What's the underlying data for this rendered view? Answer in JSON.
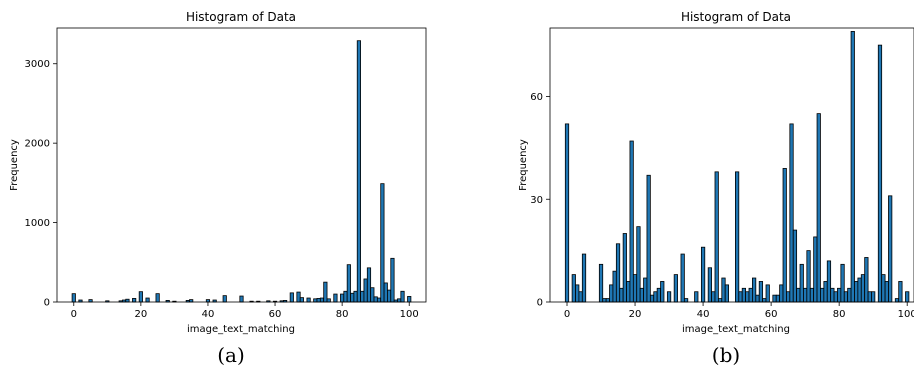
{
  "chart_data": [
    {
      "type": "bar",
      "title": "Histogram of Data",
      "xlabel": "image_text_matching",
      "ylabel": "Frequency",
      "caption": "(a)",
      "xlim": [
        -5,
        105
      ],
      "ylim": [
        0,
        3450
      ],
      "xticks": [
        0,
        20,
        40,
        60,
        80,
        100
      ],
      "yticks": [
        0,
        1000,
        2000,
        3000
      ],
      "bin_width": 1,
      "x": [
        0,
        2,
        5,
        10,
        14,
        15,
        16,
        18,
        20,
        22,
        25,
        28,
        30,
        34,
        35,
        40,
        42,
        45,
        50,
        53,
        55,
        58,
        60,
        62,
        63,
        65,
        67,
        68,
        70,
        72,
        73,
        74,
        75,
        76,
        78,
        80,
        81,
        82,
        83,
        84,
        85,
        86,
        87,
        88,
        89,
        90,
        91,
        92,
        93,
        94,
        95,
        96,
        97,
        98,
        100
      ],
      "values": [
        105,
        25,
        30,
        15,
        15,
        25,
        35,
        45,
        130,
        50,
        105,
        20,
        10,
        20,
        30,
        30,
        25,
        80,
        75,
        10,
        10,
        15,
        10,
        15,
        20,
        115,
        125,
        55,
        50,
        40,
        45,
        50,
        250,
        40,
        100,
        100,
        135,
        470,
        110,
        135,
        3290,
        135,
        290,
        430,
        180,
        65,
        50,
        1490,
        240,
        150,
        550,
        25,
        40,
        135,
        70
      ]
    },
    {
      "type": "bar",
      "title": "Histogram of Data",
      "xlabel": "image_text_matching",
      "ylabel": "Frequency",
      "caption": "(b)",
      "xlim": [
        -5,
        102
      ],
      "ylim": [
        0,
        80
      ],
      "xticks": [
        0,
        20,
        40,
        60,
        80,
        100
      ],
      "yticks": [
        0,
        30,
        60
      ],
      "bin_width": 1,
      "x": [
        0,
        2,
        3,
        4,
        5,
        10,
        11,
        12,
        13,
        14,
        15,
        16,
        17,
        18,
        19,
        20,
        21,
        22,
        23,
        24,
        25,
        26,
        27,
        28,
        30,
        32,
        34,
        35,
        36,
        38,
        40,
        42,
        43,
        44,
        45,
        46,
        47,
        48,
        50,
        51,
        52,
        53,
        54,
        55,
        56,
        57,
        58,
        59,
        60,
        61,
        62,
        63,
        64,
        65,
        66,
        67,
        68,
        69,
        70,
        71,
        72,
        73,
        74,
        75,
        76,
        77,
        78,
        79,
        80,
        81,
        82,
        83,
        84,
        85,
        86,
        87,
        88,
        89,
        90,
        91,
        92,
        93,
        94,
        95,
        96,
        97,
        98,
        99,
        100
      ],
      "values": [
        52,
        8,
        5,
        3,
        14,
        11,
        1,
        1,
        5,
        9,
        17,
        4,
        20,
        6,
        47,
        8,
        22,
        4,
        7,
        37,
        2,
        3,
        4,
        6,
        3,
        8,
        14,
        1,
        0,
        3,
        16,
        10,
        3,
        38,
        1,
        7,
        5,
        0,
        38,
        3,
        4,
        3,
        4,
        7,
        2,
        6,
        1,
        5,
        0,
        2,
        2,
        5,
        39,
        3,
        52,
        21,
        4,
        11,
        4,
        15,
        4,
        19,
        55,
        4,
        6,
        12,
        4,
        3,
        4,
        11,
        3,
        4,
        79,
        6,
        7,
        8,
        13,
        3,
        3,
        0,
        75,
        8,
        6,
        31,
        0,
        1,
        6,
        0,
        3
      ]
    }
  ]
}
